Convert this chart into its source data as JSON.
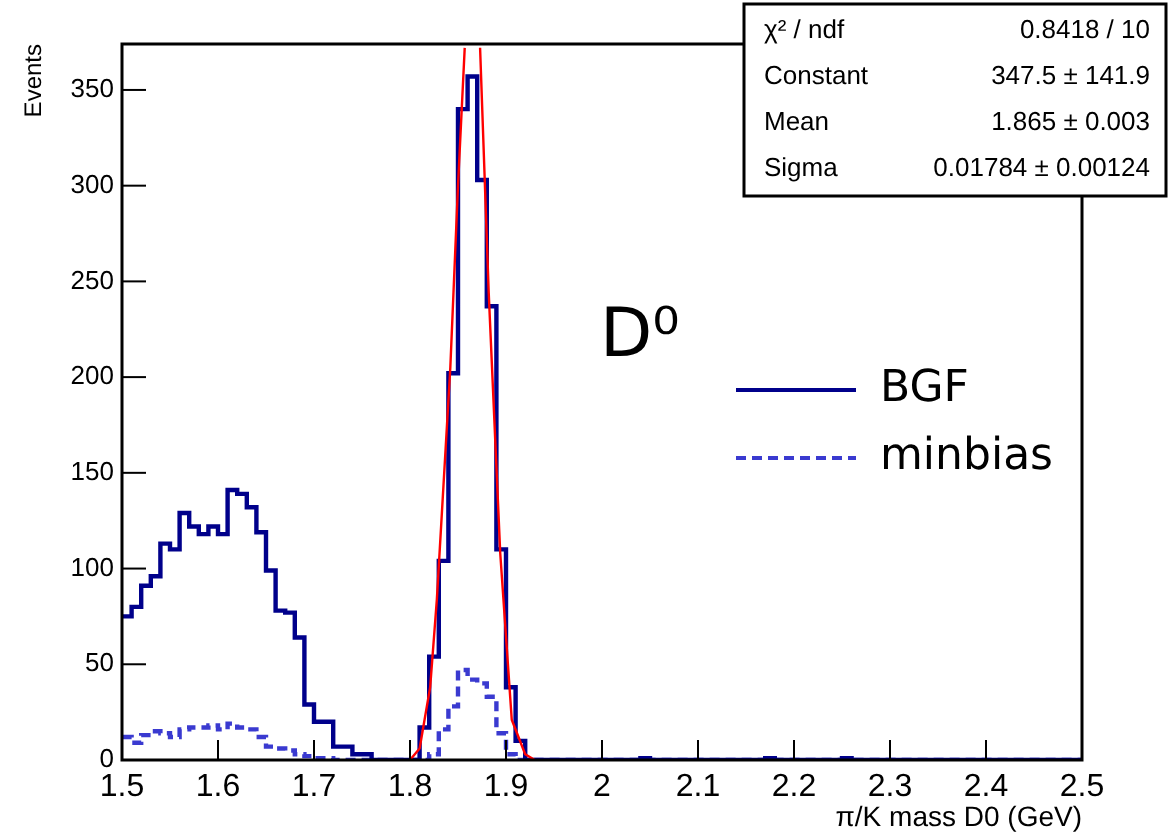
{
  "chart_data": {
    "type": "histogram",
    "xlabel": "π/K mass D0 (GeV)",
    "ylabel": "Events",
    "annotations": [
      "D⁰",
      "χ² / ndf",
      "0.8418 / 10",
      "Constant",
      "347.5 ± 141.9",
      "Mean",
      "1.865 ± 0.003",
      "Sigma",
      "0.01784 ± 0.00124"
    ],
    "bins": [
      1.5,
      1.51,
      1.52,
      1.53,
      1.54,
      1.55,
      1.56,
      1.57,
      1.58,
      1.59,
      1.6,
      1.61,
      1.62,
      1.63,
      1.64,
      1.65,
      1.66,
      1.67,
      1.68,
      1.69,
      1.7,
      1.71,
      1.72,
      1.73,
      1.74,
      1.75,
      1.76,
      1.77,
      1.78,
      1.79,
      1.8,
      1.81,
      1.82,
      1.83,
      1.84,
      1.85,
      1.86,
      1.87,
      1.88,
      1.89,
      1.9,
      1.91,
      1.92,
      1.93,
      1.94,
      1.95,
      1.96,
      1.97,
      1.98,
      1.99,
      2,
      2.01,
      2.02,
      2.03,
      2.04,
      2.05,
      2.06,
      2.07,
      2.08,
      2.09,
      2.1,
      2.11,
      2.12,
      2.13,
      2.14,
      2.15,
      2.16,
      2.17,
      2.18,
      2.19,
      2.2,
      2.21,
      2.22,
      2.23,
      2.24,
      2.25,
      2.26,
      2.27,
      2.28,
      2.29,
      2.3,
      2.31,
      2.32,
      2.33,
      2.34,
      2.35,
      2.36,
      2.37,
      2.38,
      2.39,
      2.4,
      2.41,
      2.42,
      2.43,
      2.44,
      2.45,
      2.46,
      2.47,
      2.48,
      2.49,
      2.5
    ],
    "series": [
      {
        "name": "BGF",
        "color": "#00008b",
        "line_style": "solid",
        "values": [
          75,
          80,
          91,
          96,
          113,
          110,
          129,
          122,
          118,
          122,
          118,
          141,
          139,
          132,
          119,
          99,
          78,
          77,
          64,
          29,
          20,
          20,
          7,
          7,
          3,
          3,
          0,
          0,
          0,
          0,
          0,
          17,
          54,
          104,
          202,
          340,
          357,
          303,
          237,
          110,
          38,
          10,
          0,
          0,
          0,
          0,
          0,
          0,
          0,
          0,
          0,
          0,
          0,
          0,
          1,
          0,
          0,
          0,
          0,
          0,
          0,
          0,
          0,
          0,
          0,
          0,
          0,
          1,
          0,
          0,
          0,
          0,
          0,
          0,
          0,
          1,
          0,
          0,
          0,
          0,
          0,
          0,
          0,
          0,
          0,
          0,
          0,
          0,
          0,
          0,
          0,
          0,
          0,
          0,
          0,
          0,
          0,
          0,
          0,
          0
        ]
      },
      {
        "name": "minbias",
        "color": "#3a3ad0",
        "line_style": "dashed",
        "values": [
          12,
          9,
          13,
          15,
          14,
          12,
          16,
          17,
          17,
          18,
          16,
          19,
          17,
          16,
          12,
          7,
          6,
          5,
          3,
          2,
          1,
          1,
          0,
          0,
          0,
          0,
          0,
          0,
          0,
          0,
          0,
          0,
          3,
          16,
          28,
          47,
          42,
          40,
          33,
          14,
          3,
          0,
          0,
          0,
          0,
          0,
          0,
          0,
          0,
          0,
          0,
          0,
          0,
          0,
          0,
          0,
          0,
          0,
          0,
          0,
          0,
          0,
          0,
          0,
          0,
          0,
          0,
          0,
          0,
          0,
          0,
          0,
          0,
          0,
          0,
          0,
          0,
          0,
          0,
          0,
          0,
          0,
          0,
          0,
          0,
          0,
          0,
          0,
          0,
          0,
          0,
          0,
          0,
          0,
          0,
          0,
          0,
          0,
          0,
          0
        ]
      },
      {
        "type": "line",
        "color": "#ff0000",
        "line_style": "solid",
        "x": [
          1.8,
          1.81,
          1.821,
          1.828,
          1.842,
          1.85,
          1.857,
          1.865,
          1.873,
          1.882,
          1.894,
          1.906,
          1.92,
          1.93
        ],
        "values": [
          0,
          6,
          38,
          84,
          205,
          300,
          372,
          null,
          372,
          244,
          108,
          21,
          3,
          0
        ]
      }
    ],
    "xlim": [
      1.5,
      2.5
    ],
    "xticks": [
      1.5,
      1.6,
      1.7,
      1.8,
      1.9,
      2,
      2.1,
      2.2,
      2.3,
      2.4,
      2.5
    ],
    "ylim": [
      0,
      374
    ],
    "yticks": [
      0,
      50,
      100,
      150,
      200,
      250,
      300,
      350
    ],
    "legend": "right"
  }
}
